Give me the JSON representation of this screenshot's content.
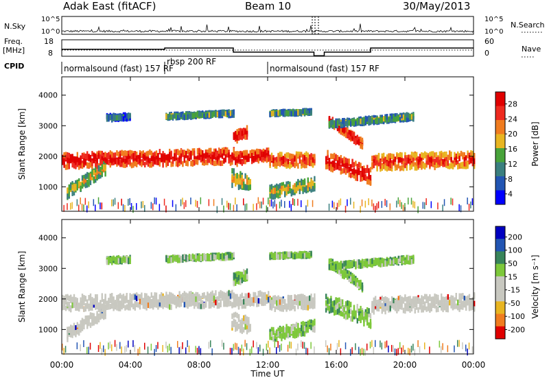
{
  "header": {
    "left": "Adak East (fitACF)",
    "center": "Beam 10",
    "right": "30/May/2013"
  },
  "top_panels": {
    "nsky_label": "N.Sky",
    "nsky_ticks": [
      "10^5",
      "10^0"
    ],
    "nsearch_label": "N.Search",
    "freq_label": "Freq.",
    "freq_unit": "[MHz]",
    "freq_ticks": [
      "18",
      "8"
    ],
    "nave_ticks": [
      "60",
      "0"
    ],
    "nave_label": "Nave",
    "cpid_label": "CPID",
    "cpid_segments": [
      {
        "label": "normalsound (fast) 157 RF",
        "start_hr": 0,
        "end_hr": 6
      },
      {
        "label": "rbsp 200 RF",
        "start_hr": 6,
        "end_hr": 12
      },
      {
        "label": "normalsound (fast) 157 RF",
        "start_hr": 12,
        "end_hr": 24
      }
    ],
    "freq_steps": [
      {
        "start_hr": 0,
        "end_hr": 6,
        "freq_mhz": 12.2
      },
      {
        "start_hr": 6,
        "end_hr": 10,
        "freq_mhz": 13
      },
      {
        "start_hr": 10,
        "end_hr": 14.7,
        "freq_mhz": 10.5
      },
      {
        "start_hr": 14.7,
        "end_hr": 15.3,
        "freq_mhz": 8.3
      },
      {
        "start_hr": 15.3,
        "end_hr": 18,
        "freq_mhz": 10.5
      },
      {
        "start_hr": 18,
        "end_hr": 24,
        "freq_mhz": 13
      }
    ]
  },
  "chart_data": [
    {
      "type": "heatmap",
      "name": "power",
      "ylabel": "Slant Range [km]",
      "yticks": [
        "4000",
        "3000",
        "2000",
        "1000"
      ],
      "ylim": [
        200,
        4600
      ],
      "xlim_hours": [
        0,
        24
      ],
      "colorbar_label": "Power [dB]",
      "colorbar_ticks": [
        "28",
        "24",
        "20",
        "16",
        "12",
        "8",
        "4"
      ],
      "colorbar_range": [
        0,
        32
      ]
    },
    {
      "type": "heatmap",
      "name": "velocity",
      "ylabel": "Slant Range [km]",
      "yticks": [
        "4000",
        "3000",
        "2000",
        "1000"
      ],
      "ylim": [
        200,
        4600
      ],
      "xlim_hours": [
        0,
        24
      ],
      "colorbar_label": "Velocity [m s⁻¹]",
      "colorbar_ticks": [
        "200",
        "100",
        "50",
        "15",
        "-15",
        "-50",
        "-100",
        "-200"
      ]
    }
  ],
  "xaxis": {
    "ticks": [
      "00:00",
      "04:00",
      "08:00",
      "12:00",
      "16:00",
      "20:00",
      "00:00"
    ],
    "label": "Time UT"
  },
  "colors": {
    "power_scale": [
      "#0000ff",
      "#2255b3",
      "#3a7f7f",
      "#48a33a",
      "#e8b521",
      "#f07c1f",
      "#ee2a1f",
      "#e00000"
    ],
    "velocity_scale": [
      "#e00000",
      "#f07c1f",
      "#e8b521",
      "#c8c8c0",
      "#c8c8c0",
      "#7dc83a",
      "#38845a",
      "#2255b3",
      "#0000c0"
    ],
    "ground_scatter": "#c8c8c0"
  }
}
